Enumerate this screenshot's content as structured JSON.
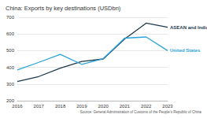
{
  "chart_data": {
    "type": "line",
    "title": "China: Exports by key destinations (USDbn)",
    "source": "Source: General Administration of Customs of the People's Republic of China",
    "categories": [
      "2016",
      "2017",
      "2018",
      "2019",
      "2020",
      "2021",
      "2022",
      "2023"
    ],
    "series": [
      {
        "name": "ASEAN and India",
        "color": "#1c3b50",
        "values": [
          315,
          345,
          395,
          435,
          450,
          570,
          665,
          640
        ]
      },
      {
        "name": "United States",
        "color": "#2aa3d8",
        "values": [
          385,
          430,
          478,
          418,
          452,
          575,
          582,
          500
        ]
      }
    ],
    "ylim": [
      200,
      700
    ],
    "yticks": [
      200,
      300,
      400,
      500,
      600,
      700
    ],
    "grid": true,
    "legend": false
  }
}
